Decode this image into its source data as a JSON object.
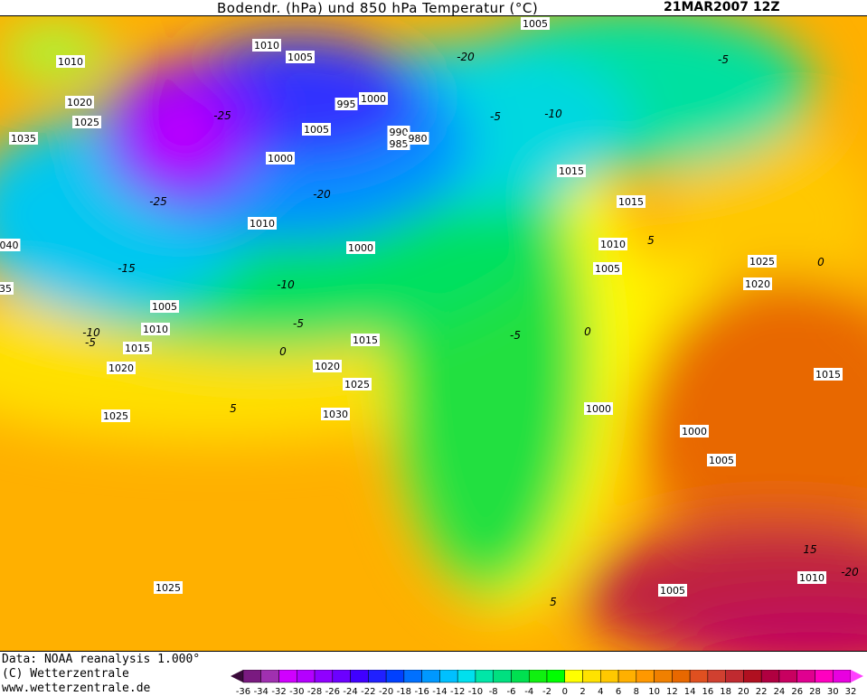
{
  "header": {
    "title": "Bodendr. (hPa) und 850 hPa Temperatur (°C)",
    "date": "21MAR2007 12Z"
  },
  "footer": {
    "source": "Data: NOAA reanalysis 1.000°",
    "copyright": "(C) Wetterzentrale",
    "url": "www.wetterzentrale.de"
  },
  "map": {
    "pressure_labels": [
      "1005",
      "1010",
      "1005",
      "1010",
      "1020",
      "1025",
      "995",
      "1000",
      "1005",
      "990",
      "985",
      "980",
      "1035",
      "1000",
      "1015",
      "1015",
      "1010",
      "1000",
      "1010",
      "040",
      "1005",
      "1025",
      "1020",
      "35",
      "1005",
      "1010",
      "1015",
      "1015",
      "1020",
      "1020",
      "1025",
      "1015",
      "1025",
      "1030",
      "1000",
      "1000",
      "1005",
      "1010",
      "1025",
      "1005"
    ],
    "temperature_labels": [
      "-20",
      "-5",
      "-25",
      "-10",
      "-5",
      "-25",
      "-20",
      "-15",
      "-10",
      "-5",
      "-10",
      "-5",
      "0",
      "5",
      "0",
      "0",
      "-5",
      "5",
      "15",
      "-20",
      "5"
    ]
  },
  "colorbar": {
    "ticks": [
      "-36",
      "-34",
      "-32",
      "-30",
      "-28",
      "-26",
      "-24",
      "-22",
      "-20",
      "-18",
      "-16",
      "-14",
      "-12",
      "-10",
      "-8",
      "-6",
      "-4",
      "-2",
      "0",
      "2",
      "4",
      "6",
      "8",
      "10",
      "12",
      "14",
      "16",
      "18",
      "20",
      "22",
      "24",
      "26",
      "28",
      "30",
      "32"
    ],
    "colors": [
      "#5a1060",
      "#7a1a80",
      "#a030b0",
      "#d000ff",
      "#b400ff",
      "#9000ff",
      "#6c00ff",
      "#4000ff",
      "#2020ff",
      "#0040ff",
      "#0070ff",
      "#0098ff",
      "#00c0ff",
      "#00e0ee",
      "#00e6a8",
      "#00e080",
      "#00e050",
      "#10f010",
      "#00ff00",
      "#ffff00",
      "#ffe200",
      "#ffc800",
      "#ffb000",
      "#ff9800",
      "#f08000",
      "#e86800",
      "#e05020",
      "#d04030",
      "#c02a30",
      "#b01020",
      "#b00040",
      "#c80060",
      "#e00090",
      "#ff00c0",
      "#e800e0"
    ],
    "below_color": "#3a0a3a",
    "above_color": "#ff40ff"
  }
}
